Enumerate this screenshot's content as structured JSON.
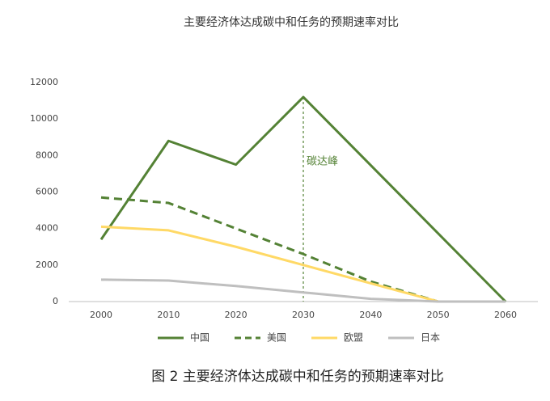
{
  "chart_data": {
    "type": "line",
    "title": "主要经济体达成碳中和任务的预期速率对比",
    "caption": "图 2 主要经济体达成碳中和任务的预期速率对比",
    "series": [
      {
        "name": "中国",
        "color": "#548235",
        "dash": false,
        "x": [
          2000,
          2010,
          2020,
          2030,
          2060
        ],
        "values": [
          3400,
          8800,
          7500,
          11200,
          0
        ]
      },
      {
        "name": "美国",
        "color": "#548235",
        "dash": true,
        "x": [
          2000,
          2010,
          2020,
          2030,
          2040,
          2050
        ],
        "values": [
          5700,
          5400,
          4000,
          2600,
          1100,
          0
        ]
      },
      {
        "name": "欧盟",
        "color": "#ffd966",
        "dash": false,
        "x": [
          2000,
          2010,
          2020,
          2030,
          2040,
          2050
        ],
        "values": [
          4100,
          3900,
          3000,
          2000,
          1000,
          0
        ]
      },
      {
        "name": "日本",
        "color": "#bfbfbf",
        "dash": false,
        "x": [
          2000,
          2010,
          2020,
          2030,
          2040,
          2050,
          2060
        ],
        "values": [
          1200,
          1150,
          850,
          500,
          150,
          0,
          0
        ]
      }
    ],
    "annotations": [
      {
        "text": "碳达峰",
        "x": 2030,
        "color": "#548235"
      }
    ],
    "xlim": [
      1995.2,
      2064.8
    ],
    "xticks": [
      2000,
      2010,
      2020,
      2030,
      2040,
      2050,
      2060
    ],
    "ylim": [
      0,
      12000
    ],
    "yticks": [
      0,
      2000,
      4000,
      6000,
      8000,
      10000,
      12000
    ]
  }
}
